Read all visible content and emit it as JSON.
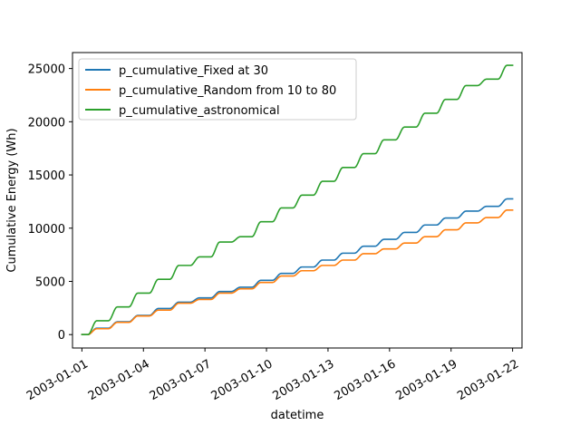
{
  "chart_data": {
    "type": "line",
    "title": "",
    "xlabel": "datetime",
    "ylabel": "Cumulative Energy (Wh)",
    "x_ticks": [
      "2003-01-01",
      "2003-01-04",
      "2003-01-07",
      "2003-01-10",
      "2003-01-13",
      "2003-01-16",
      "2003-01-19",
      "2003-01-22"
    ],
    "y_ticks": [
      0,
      5000,
      10000,
      15000,
      20000,
      25000
    ],
    "xlim": [
      "2002-12-31T13:00",
      "2003-01-22T11:00"
    ],
    "ylim": [
      -1260,
      26500
    ],
    "grid": false,
    "legend_position": "top-left",
    "x": [
      "2003-01-01",
      "2003-01-02",
      "2003-01-03",
      "2003-01-04",
      "2003-01-05",
      "2003-01-06",
      "2003-01-07",
      "2003-01-08",
      "2003-01-09",
      "2003-01-10",
      "2003-01-11",
      "2003-01-12",
      "2003-01-13",
      "2003-01-14",
      "2003-01-15",
      "2003-01-16",
      "2003-01-17",
      "2003-01-18",
      "2003-01-19",
      "2003-01-20",
      "2003-01-21",
      "2003-01-22"
    ],
    "series": [
      {
        "name": "p_cumulative_Fixed at 30",
        "color": "#1f77b4",
        "values": [
          0,
          600,
          1200,
          1800,
          2450,
          3050,
          3450,
          4050,
          4450,
          5100,
          5750,
          6350,
          7000,
          7650,
          8300,
          8950,
          9600,
          10300,
          10950,
          11600,
          12050,
          12750
        ]
      },
      {
        "name": "p_cumulative_Random from 10 to 80",
        "color": "#ff7f0e",
        "values": [
          0,
          550,
          1150,
          1750,
          2300,
          2950,
          3300,
          3900,
          4300,
          4900,
          5500,
          6000,
          6500,
          7000,
          7600,
          8050,
          8600,
          9200,
          9850,
          10500,
          11000,
          11700
        ]
      },
      {
        "name": "p_cumulative_astronomical",
        "color": "#2ca02c",
        "values": [
          0,
          1300,
          2600,
          3900,
          5200,
          6500,
          7300,
          8700,
          9200,
          10600,
          11900,
          13100,
          14400,
          15700,
          17000,
          18300,
          19500,
          20800,
          22100,
          23400,
          24000,
          25300
        ]
      }
    ]
  }
}
